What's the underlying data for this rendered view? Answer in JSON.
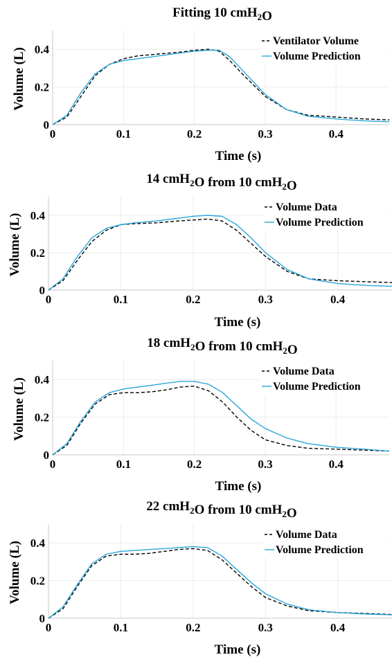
{
  "chart_data": [
    {
      "type": "line",
      "title": {
        "parts": [
          {
            "t": "Fitting 10 cmH"
          },
          {
            "t": "2",
            "sub": true
          },
          {
            "t": "O"
          }
        ]
      },
      "xlabel": "Time (s)",
      "ylabel": "Volume (L)",
      "xlim": [
        0,
        0.475
      ],
      "ylim": [
        0,
        0.5
      ],
      "xticks": [
        "0",
        "0.1",
        "0.2",
        "0.3",
        "0.4"
      ],
      "xtick_values": [
        0,
        0.1,
        0.2,
        0.3,
        0.4
      ],
      "yticks": [
        "0",
        "0.2",
        "0.4"
      ],
      "ytick_values": [
        0,
        0.2,
        0.4
      ],
      "grid": true,
      "legend_position": "top-right",
      "series": [
        {
          "name": "Ventilator Volume",
          "color": "#000000",
          "dash": "dashed",
          "x": [
            0,
            0.02,
            0.04,
            0.06,
            0.08,
            0.1,
            0.12,
            0.15,
            0.18,
            0.2,
            0.22,
            0.235,
            0.25,
            0.27,
            0.3,
            0.33,
            0.36,
            0.4,
            0.44,
            0.475
          ],
          "y": [
            0,
            0.04,
            0.15,
            0.26,
            0.32,
            0.35,
            0.365,
            0.375,
            0.385,
            0.395,
            0.4,
            0.39,
            0.34,
            0.26,
            0.15,
            0.08,
            0.05,
            0.04,
            0.03,
            0.025
          ]
        },
        {
          "name": "Volume Prediction",
          "color": "#29a6d8",
          "dash": "solid",
          "x": [
            0,
            0.02,
            0.04,
            0.06,
            0.08,
            0.1,
            0.12,
            0.15,
            0.18,
            0.2,
            0.22,
            0.235,
            0.25,
            0.27,
            0.3,
            0.33,
            0.36,
            0.4,
            0.44,
            0.475
          ],
          "y": [
            0,
            0.05,
            0.17,
            0.27,
            0.32,
            0.34,
            0.35,
            0.365,
            0.38,
            0.39,
            0.395,
            0.395,
            0.36,
            0.28,
            0.16,
            0.08,
            0.045,
            0.03,
            0.02,
            0.015
          ]
        }
      ]
    },
    {
      "type": "line",
      "title": {
        "parts": [
          {
            "t": "14 cmH"
          },
          {
            "t": "2",
            "sub": true
          },
          {
            "t": "O from 10 cmH"
          },
          {
            "t": "2",
            "sub": true
          },
          {
            "t": "O"
          }
        ]
      },
      "xlabel": "Time (s)",
      "ylabel": "Volume (L)",
      "xlim": [
        0,
        0.475
      ],
      "ylim": [
        0,
        0.5
      ],
      "xticks": [
        "0",
        "0.1",
        "0.2",
        "0.3",
        "0.4"
      ],
      "xtick_values": [
        0,
        0.1,
        0.2,
        0.3,
        0.4
      ],
      "yticks": [
        "0",
        "0.2",
        "0.4"
      ],
      "ytick_values": [
        0,
        0.2,
        0.4
      ],
      "grid": true,
      "legend_position": "top-right",
      "series": [
        {
          "name": "Volume Data",
          "color": "#000000",
          "dash": "dashed",
          "x": [
            0,
            0.02,
            0.04,
            0.06,
            0.08,
            0.1,
            0.12,
            0.15,
            0.18,
            0.2,
            0.22,
            0.24,
            0.26,
            0.28,
            0.3,
            0.33,
            0.36,
            0.4,
            0.44,
            0.475
          ],
          "y": [
            0,
            0.05,
            0.16,
            0.26,
            0.32,
            0.35,
            0.355,
            0.36,
            0.37,
            0.375,
            0.38,
            0.37,
            0.32,
            0.25,
            0.18,
            0.1,
            0.06,
            0.05,
            0.045,
            0.04
          ]
        },
        {
          "name": "Volume Prediction",
          "color": "#29a6d8",
          "dash": "solid",
          "x": [
            0,
            0.02,
            0.04,
            0.06,
            0.08,
            0.1,
            0.12,
            0.15,
            0.18,
            0.2,
            0.22,
            0.24,
            0.26,
            0.28,
            0.3,
            0.33,
            0.36,
            0.4,
            0.44,
            0.475
          ],
          "y": [
            0,
            0.06,
            0.18,
            0.28,
            0.33,
            0.35,
            0.36,
            0.37,
            0.385,
            0.395,
            0.4,
            0.395,
            0.35,
            0.28,
            0.2,
            0.11,
            0.06,
            0.035,
            0.025,
            0.02
          ]
        }
      ]
    },
    {
      "type": "line",
      "title": {
        "parts": [
          {
            "t": "18 cmH"
          },
          {
            "t": "2",
            "sub": true
          },
          {
            "t": "O from 10 cmH"
          },
          {
            "t": "2",
            "sub": true
          },
          {
            "t": "O"
          }
        ]
      },
      "xlabel": "Time (s)",
      "ylabel": "Volume (L)",
      "xlim": [
        0,
        0.475
      ],
      "ylim": [
        0,
        0.5
      ],
      "xticks": [
        "0",
        "0.1",
        "0.2",
        "0.3",
        "0.4"
      ],
      "xtick_values": [
        0,
        0.1,
        0.2,
        0.3,
        0.4
      ],
      "yticks": [
        "0",
        "0.2",
        "0.4"
      ],
      "ytick_values": [
        0,
        0.2,
        0.4
      ],
      "grid": true,
      "legend_position": "top-right",
      "series": [
        {
          "name": "Volume Data",
          "color": "#000000",
          "dash": "dashed",
          "x": [
            0,
            0.02,
            0.04,
            0.06,
            0.08,
            0.1,
            0.12,
            0.14,
            0.16,
            0.18,
            0.2,
            0.22,
            0.24,
            0.26,
            0.28,
            0.3,
            0.33,
            0.36,
            0.4,
            0.44,
            0.475
          ],
          "y": [
            0,
            0.05,
            0.17,
            0.27,
            0.32,
            0.33,
            0.33,
            0.335,
            0.345,
            0.36,
            0.365,
            0.34,
            0.28,
            0.2,
            0.13,
            0.08,
            0.05,
            0.035,
            0.03,
            0.025,
            0.02
          ]
        },
        {
          "name": "Volume Prediction",
          "color": "#29a6d8",
          "dash": "solid",
          "x": [
            0,
            0.02,
            0.04,
            0.06,
            0.08,
            0.1,
            0.12,
            0.14,
            0.16,
            0.18,
            0.2,
            0.22,
            0.24,
            0.26,
            0.28,
            0.3,
            0.33,
            0.36,
            0.4,
            0.44,
            0.475
          ],
          "y": [
            0,
            0.06,
            0.18,
            0.28,
            0.33,
            0.35,
            0.36,
            0.37,
            0.38,
            0.39,
            0.39,
            0.375,
            0.33,
            0.26,
            0.19,
            0.14,
            0.09,
            0.06,
            0.04,
            0.03,
            0.02
          ]
        }
      ]
    },
    {
      "type": "line",
      "title": {
        "parts": [
          {
            "t": "22 cmH"
          },
          {
            "t": "2",
            "sub": true
          },
          {
            "t": "O from 10 cmH"
          },
          {
            "t": "2",
            "sub": true
          },
          {
            "t": "O"
          }
        ]
      },
      "xlabel": "Time (s)",
      "ylabel": "Volume (L)",
      "xlim": [
        0,
        0.475
      ],
      "ylim": [
        0,
        0.5
      ],
      "xticks": [
        "0",
        "0.1",
        "0.2",
        "0.3",
        "0.4"
      ],
      "xtick_values": [
        0,
        0.1,
        0.2,
        0.3,
        0.4
      ],
      "yticks": [
        "0",
        "0.2",
        "0.4"
      ],
      "ytick_values": [
        0,
        0.2,
        0.4
      ],
      "grid": true,
      "legend_position": "top-right",
      "series": [
        {
          "name": "Volume Data",
          "color": "#000000",
          "dash": "dashed",
          "x": [
            0,
            0.02,
            0.04,
            0.06,
            0.08,
            0.1,
            0.12,
            0.14,
            0.16,
            0.18,
            0.2,
            0.22,
            0.24,
            0.26,
            0.28,
            0.3,
            0.33,
            0.36,
            0.4,
            0.44,
            0.475
          ],
          "y": [
            0,
            0.05,
            0.17,
            0.28,
            0.33,
            0.34,
            0.34,
            0.345,
            0.355,
            0.365,
            0.37,
            0.36,
            0.31,
            0.24,
            0.17,
            0.11,
            0.065,
            0.04,
            0.03,
            0.025,
            0.02
          ]
        },
        {
          "name": "Volume Prediction",
          "color": "#29a6d8",
          "dash": "solid",
          "x": [
            0,
            0.02,
            0.04,
            0.06,
            0.08,
            0.1,
            0.12,
            0.14,
            0.16,
            0.18,
            0.2,
            0.22,
            0.24,
            0.26,
            0.28,
            0.3,
            0.33,
            0.36,
            0.4,
            0.44,
            0.475
          ],
          "y": [
            0,
            0.06,
            0.18,
            0.29,
            0.34,
            0.355,
            0.36,
            0.365,
            0.37,
            0.375,
            0.38,
            0.375,
            0.33,
            0.26,
            0.19,
            0.13,
            0.075,
            0.045,
            0.03,
            0.022,
            0.018
          ]
        }
      ]
    }
  ]
}
